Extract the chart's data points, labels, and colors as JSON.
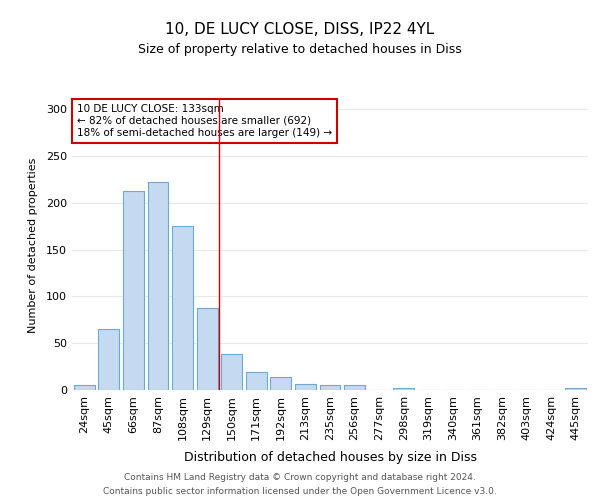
{
  "title1": "10, DE LUCY CLOSE, DISS, IP22 4YL",
  "title2": "Size of property relative to detached houses in Diss",
  "xlabel": "Distribution of detached houses by size in Diss",
  "ylabel": "Number of detached properties",
  "footer1": "Contains HM Land Registry data © Crown copyright and database right 2024.",
  "footer2": "Contains public sector information licensed under the Open Government Licence v3.0.",
  "annotation_line1": "10 DE LUCY CLOSE: 133sqm",
  "annotation_line2": "← 82% of detached houses are smaller (692)",
  "annotation_line3": "18% of semi-detached houses are larger (149) →",
  "categories": [
    "24sqm",
    "45sqm",
    "66sqm",
    "87sqm",
    "108sqm",
    "129sqm",
    "150sqm",
    "171sqm",
    "192sqm",
    "213sqm",
    "235sqm",
    "256sqm",
    "277sqm",
    "298sqm",
    "319sqm",
    "340sqm",
    "361sqm",
    "382sqm",
    "403sqm",
    "424sqm",
    "445sqm"
  ],
  "values": [
    5,
    65,
    213,
    222,
    175,
    88,
    39,
    19,
    14,
    6,
    5,
    5,
    0,
    2,
    0,
    0,
    0,
    0,
    0,
    0,
    2
  ],
  "bar_color": "#c5d9f0",
  "bar_edge_color": "#6aaad4",
  "vline_x_index": 5.5,
  "vline_color": "#cc0000",
  "annotation_box_edge_color": "#cc0000",
  "bg_color": "#ffffff",
  "plot_bg_color": "#ffffff",
  "grid_color": "#e8e8e8",
  "ylim": [
    0,
    310
  ],
  "yticks": [
    0,
    50,
    100,
    150,
    200,
    250,
    300
  ],
  "title1_fontsize": 11,
  "title2_fontsize": 9,
  "ylabel_fontsize": 8,
  "xlabel_fontsize": 9,
  "tick_fontsize": 8,
  "annotation_fontsize": 7.5,
  "footer_fontsize": 6.5,
  "footer_color": "#555555"
}
